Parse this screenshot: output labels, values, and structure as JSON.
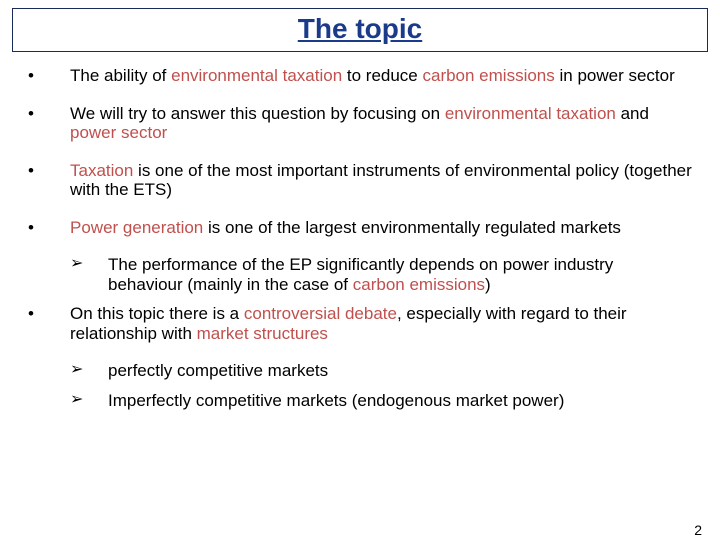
{
  "title": "The topic",
  "colors": {
    "title_text": "#1a3a8a",
    "title_border": "#1a2a5c",
    "highlight": "#c0504d",
    "body_text": "#000000",
    "background": "#ffffff"
  },
  "bullets": [
    {
      "segments": [
        {
          "t": "The ability of ",
          "hl": false
        },
        {
          "t": "environmental taxation",
          "hl": true
        },
        {
          "t": " to reduce ",
          "hl": false
        },
        {
          "t": "carbon emissions",
          "hl": true
        },
        {
          "t": " in power sector",
          "hl": false
        }
      ],
      "subs": []
    },
    {
      "segments": [
        {
          "t": "We will try to answer this question by focusing on ",
          "hl": false
        },
        {
          "t": "environmental taxation",
          "hl": true
        },
        {
          "t": " and ",
          "hl": false
        },
        {
          "t": "power sector",
          "hl": true
        }
      ],
      "subs": []
    },
    {
      "segments": [
        {
          "t": "Taxation",
          "hl": true
        },
        {
          "t": " is one of the most important instruments of environmental policy (together with the ETS)",
          "hl": false
        }
      ],
      "subs": []
    },
    {
      "segments": [
        {
          "t": "Power generation",
          "hl": true
        },
        {
          "t": " is one of the largest environmentally regulated markets",
          "hl": false
        }
      ],
      "subs": [
        {
          "segments": [
            {
              "t": "The performance of the EP significantly depends on power industry behaviour (mainly in the case of ",
              "hl": false
            },
            {
              "t": "carbon emissions",
              "hl": true
            },
            {
              "t": ")",
              "hl": false
            }
          ]
        }
      ]
    },
    {
      "segments": [
        {
          "t": "On this topic there is a ",
          "hl": false
        },
        {
          "t": "controversial debate",
          "hl": true
        },
        {
          "t": ", especially with regard to their relationship with ",
          "hl": false
        },
        {
          "t": "market structures",
          "hl": true
        }
      ],
      "subs": [
        {
          "segments": [
            {
              "t": "perfectly competitive markets",
              "hl": false
            }
          ]
        },
        {
          "segments": [
            {
              "t": "Imperfectly competitive markets (endogenous market power)",
              "hl": false
            }
          ]
        }
      ]
    }
  ],
  "page_number": "2",
  "bullet_marker": "•",
  "sub_marker": "➢"
}
